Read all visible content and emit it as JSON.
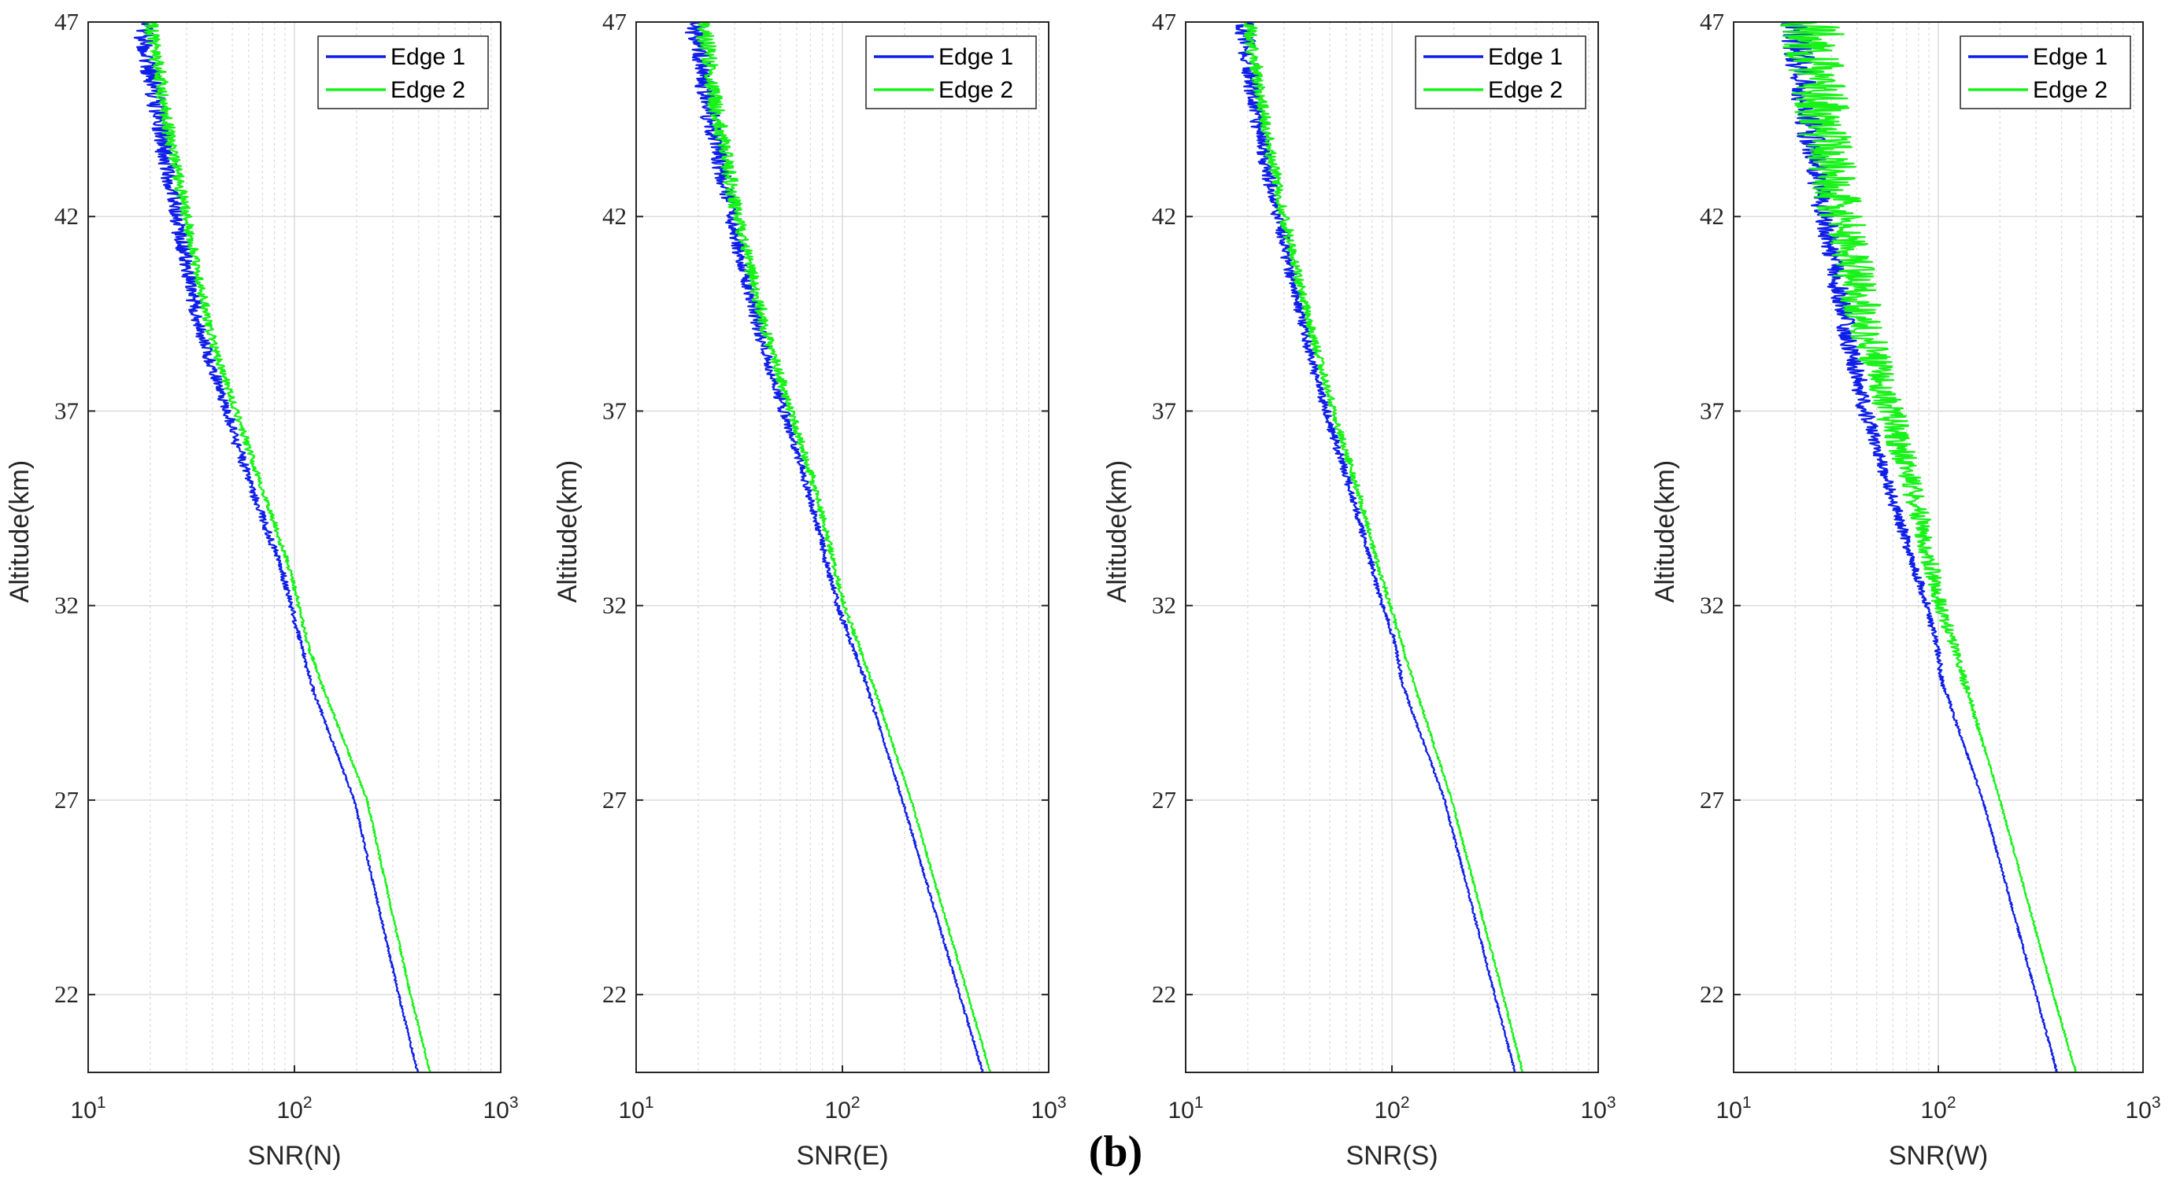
{
  "figure_caption": "(b)",
  "colors": {
    "edge1": "#0f1ee8",
    "edge2": "#18f218",
    "grid": "#d9d9d9",
    "axis": "#262626"
  },
  "chart_data": [
    {
      "type": "line",
      "panel": "N",
      "xlabel": "SNR(N)",
      "ylabel": "Altitude(km)",
      "xscale": "log",
      "xlim": [
        10,
        1000
      ],
      "ylim": [
        20,
        47
      ],
      "xticks": [
        {
          "base": "10",
          "exp": "1"
        },
        {
          "base": "10",
          "exp": "2"
        },
        {
          "base": "10",
          "exp": "3"
        }
      ],
      "yticks": [
        "22",
        "27",
        "32",
        "37",
        "42",
        "47"
      ],
      "legend": [
        "Edge 1",
        "Edge 2"
      ],
      "legend_position": "top-right",
      "grid": true,
      "series": [
        {
          "name": "Edge 1",
          "altitude": [
            20,
            22,
            27,
            30,
            31,
            32,
            33,
            35,
            37,
            39,
            42,
            44,
            47
          ],
          "snr": [
            395,
            320,
            195,
            120,
            108,
            96,
            86,
            62,
            47,
            35,
            27,
            23,
            18
          ],
          "noise": 0.12
        },
        {
          "name": "Edge 2",
          "altitude": [
            20,
            22,
            27,
            30,
            31,
            32,
            33,
            35,
            37,
            39,
            42,
            44,
            47
          ],
          "snr": [
            455,
            365,
            225,
            135,
            116,
            105,
            94,
            70,
            52,
            39,
            30,
            25,
            20
          ],
          "noise": 0.08
        }
      ]
    },
    {
      "type": "line",
      "panel": "E",
      "xlabel": "SNR(E)",
      "ylabel": "Altitude(km)",
      "xscale": "log",
      "xlim": [
        10,
        1000
      ],
      "ylim": [
        20,
        47
      ],
      "xticks": [
        {
          "base": "10",
          "exp": "1"
        },
        {
          "base": "10",
          "exp": "2"
        },
        {
          "base": "10",
          "exp": "3"
        }
      ],
      "yticks": [
        "22",
        "27",
        "32",
        "37",
        "42",
        "47"
      ],
      "legend": [
        "Edge 1",
        "Edge 2"
      ],
      "legend_position": "top-right",
      "grid": true,
      "series": [
        {
          "name": "Edge 1",
          "altitude": [
            20,
            22,
            27,
            30,
            32,
            35,
            37,
            39,
            42,
            44,
            47
          ],
          "snr": [
            480,
            370,
            195,
            130,
            95,
            68,
            52,
            40,
            29,
            24,
            19
          ],
          "noise": 0.12
        },
        {
          "name": "Edge 2",
          "altitude": [
            20,
            22,
            27,
            30,
            32,
            35,
            37,
            39,
            42,
            44,
            47
          ],
          "snr": [
            520,
            405,
            215,
            140,
            102,
            74,
            56,
            43,
            31,
            26,
            21
          ],
          "noise": 0.1
        }
      ]
    },
    {
      "type": "line",
      "panel": "S",
      "xlabel": "SNR(S)",
      "ylabel": "Altitude(km)",
      "xscale": "log",
      "xlim": [
        10,
        1000
      ],
      "ylim": [
        20,
        47
      ],
      "xticks": [
        {
          "base": "10",
          "exp": "1"
        },
        {
          "base": "10",
          "exp": "2"
        },
        {
          "base": "10",
          "exp": "3"
        }
      ],
      "yticks": [
        "22",
        "27",
        "32",
        "37",
        "42",
        "47"
      ],
      "legend": [
        "Edge 1",
        "Edge 2"
      ],
      "legend_position": "top-right",
      "grid": true,
      "series": [
        {
          "name": "Edge 1",
          "altitude": [
            20,
            22,
            27,
            30,
            31,
            32,
            33,
            35,
            37,
            39,
            42,
            44,
            47
          ],
          "snr": [
            395,
            315,
            180,
            112,
            104,
            90,
            80,
            63,
            48,
            38,
            28,
            23,
            19
          ],
          "noise": 0.1
        },
        {
          "name": "Edge 2",
          "altitude": [
            20,
            22,
            27,
            30,
            31,
            32,
            33,
            35,
            37,
            39,
            42,
            44,
            47
          ],
          "snr": [
            430,
            345,
            195,
            128,
            112,
            98,
            86,
            68,
            52,
            41,
            30,
            25,
            20
          ],
          "noise": 0.08
        }
      ]
    },
    {
      "type": "line",
      "panel": "W",
      "xlabel": "SNR(W)",
      "ylabel": "Altitude(km)",
      "xscale": "log",
      "xlim": [
        10,
        1000
      ],
      "ylim": [
        20,
        47
      ],
      "xticks": [
        {
          "base": "10",
          "exp": "1"
        },
        {
          "base": "10",
          "exp": "2"
        },
        {
          "base": "10",
          "exp": "3"
        }
      ],
      "yticks": [
        "22",
        "27",
        "32",
        "37",
        "42",
        "47"
      ],
      "legend": [
        "Edge 1",
        "Edge 2"
      ],
      "legend_position": "top-right",
      "grid": true,
      "series": [
        {
          "name": "Edge 1",
          "altitude": [
            20,
            22,
            27,
            30,
            31,
            32,
            33,
            35,
            37,
            39,
            42,
            44,
            47
          ],
          "snr": [
            380,
            300,
            165,
            105,
            98,
            88,
            76,
            58,
            44,
            36,
            28,
            24,
            20
          ],
          "noise": 0.18
        },
        {
          "name": "Edge 2",
          "altitude": [
            20,
            22,
            27,
            30,
            31,
            32,
            33,
            35,
            37,
            39,
            42,
            44,
            47
          ],
          "snr": [
            470,
            365,
            200,
            135,
            118,
            102,
            92,
            75,
            58,
            45,
            34,
            28,
            24
          ],
          "noise": 0.35
        }
      ]
    }
  ]
}
